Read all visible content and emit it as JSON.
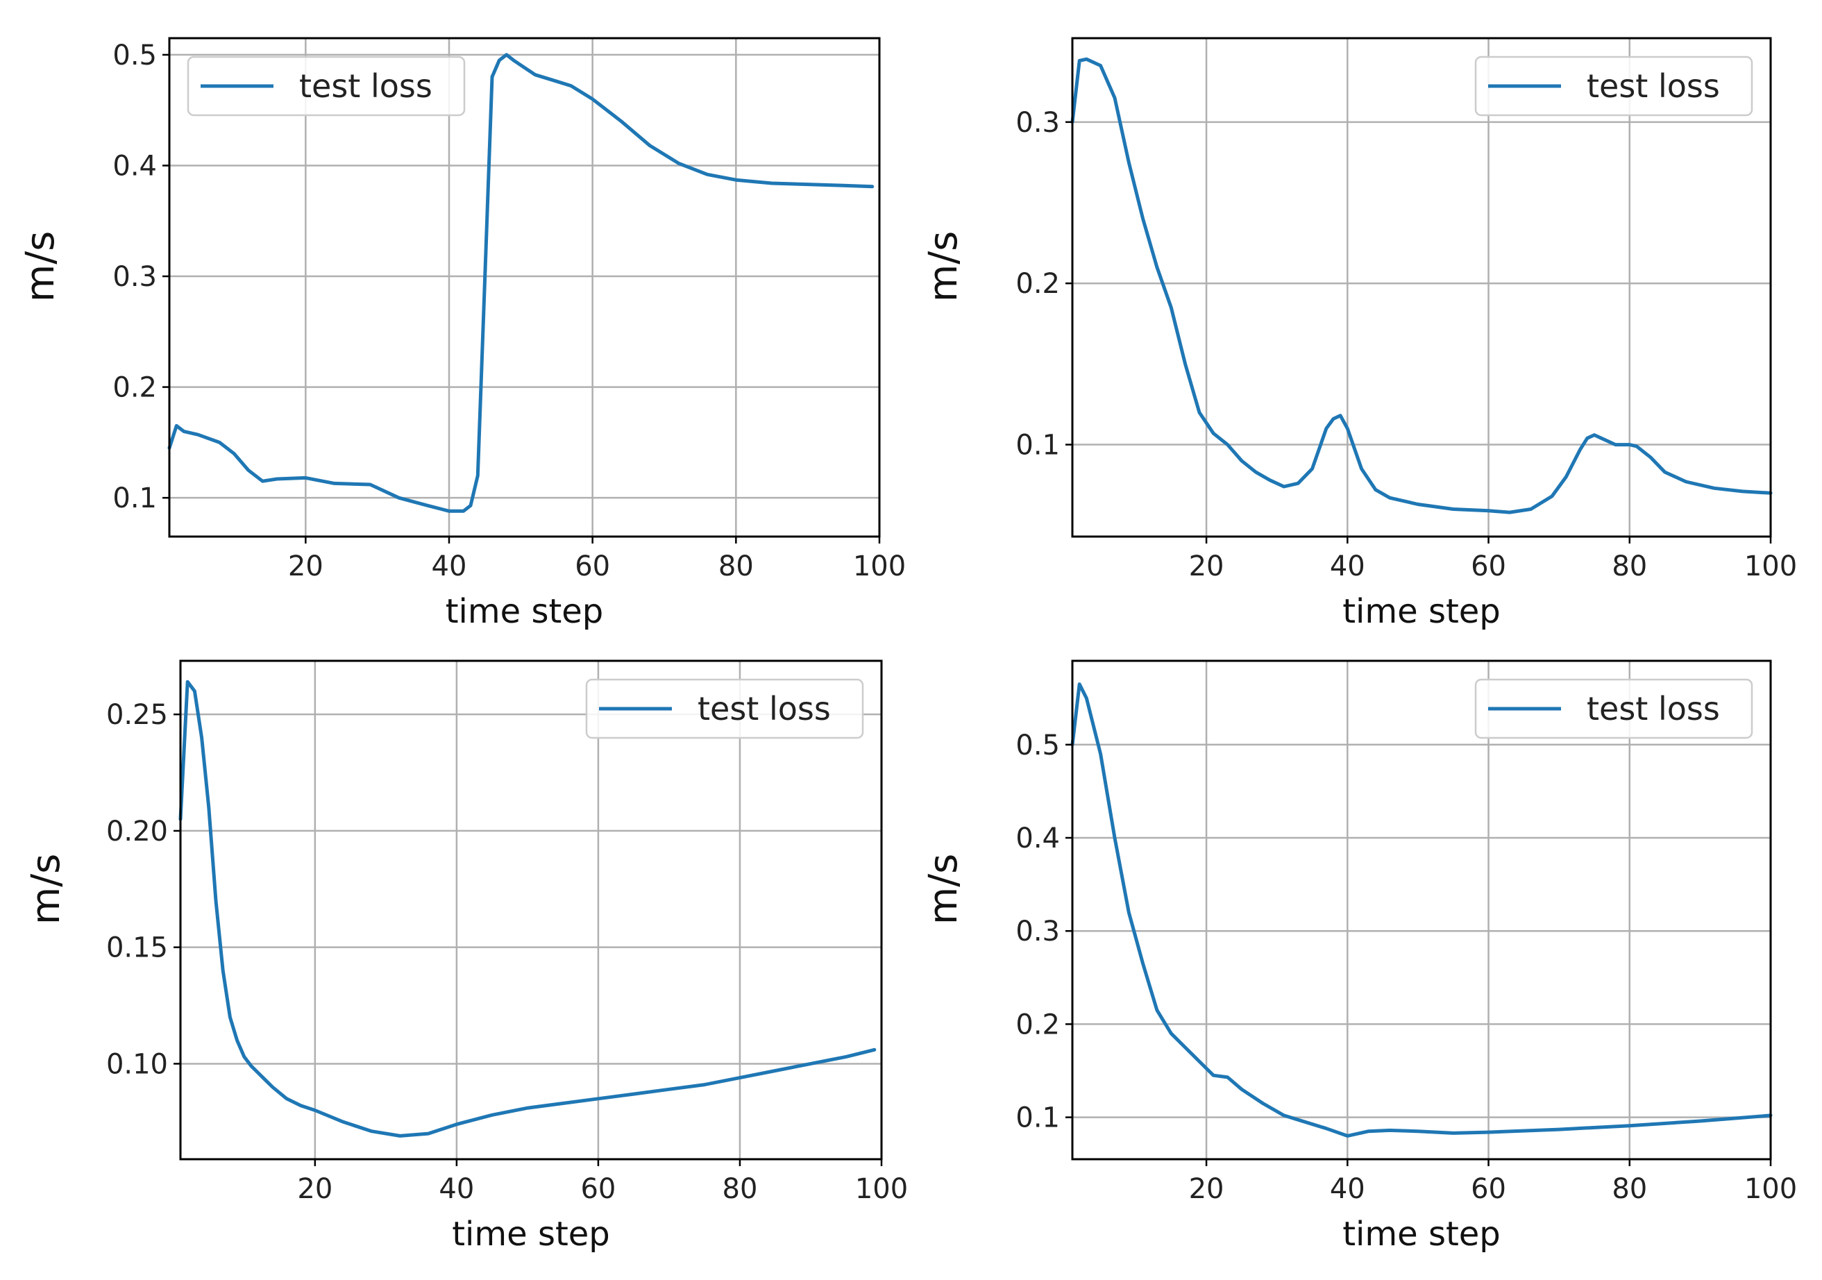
{
  "colors": {
    "series": "#1f77b4",
    "grid": "#b0b0b0",
    "frame": "#000000"
  },
  "chart_data": [
    {
      "type": "line",
      "position": "top-left",
      "xlabel": "time step",
      "ylabel": "m/s",
      "xlim": [
        1,
        100
      ],
      "ylim": [
        0.065,
        0.515
      ],
      "xticks": [
        20,
        40,
        60,
        80,
        100
      ],
      "xtick_labels": [
        "20",
        "40",
        "60",
        "80",
        "100"
      ],
      "yticks": [
        0.1,
        0.2,
        0.3,
        0.4,
        0.5
      ],
      "ytick_labels": [
        "0.1",
        "0.2",
        "0.3",
        "0.4",
        "0.5"
      ],
      "grid": true,
      "legend_position": "top-left",
      "series": [
        {
          "name": "test loss",
          "x": [
            1,
            2,
            3,
            5,
            8,
            10,
            12,
            14,
            16,
            20,
            24,
            29,
            33,
            37,
            40,
            42,
            43,
            44,
            45,
            46,
            47,
            48,
            49,
            52,
            55,
            57,
            60,
            64,
            68,
            72,
            76,
            80,
            85,
            90,
            95,
            99
          ],
          "y": [
            0.145,
            0.165,
            0.16,
            0.157,
            0.15,
            0.14,
            0.125,
            0.115,
            0.117,
            0.118,
            0.113,
            0.112,
            0.1,
            0.093,
            0.088,
            0.088,
            0.093,
            0.12,
            0.3,
            0.48,
            0.495,
            0.5,
            0.495,
            0.482,
            0.476,
            0.472,
            0.46,
            0.44,
            0.418,
            0.402,
            0.392,
            0.387,
            0.384,
            0.383,
            0.382,
            0.381
          ]
        }
      ]
    },
    {
      "type": "line",
      "position": "top-right",
      "xlabel": "time step",
      "ylabel": "m/s",
      "xlim": [
        1,
        100
      ],
      "ylim": [
        0.043,
        0.352
      ],
      "xticks": [
        20,
        40,
        60,
        80,
        100
      ],
      "xtick_labels": [
        "20",
        "40",
        "60",
        "80",
        "100"
      ],
      "yticks": [
        0.1,
        0.2,
        0.3
      ],
      "ytick_labels": [
        "0.1",
        "0.2",
        "0.3"
      ],
      "grid": true,
      "legend_position": "top-right",
      "series": [
        {
          "name": "test loss",
          "x": [
            1,
            2,
            3,
            5,
            7,
            9,
            11,
            13,
            15,
            17,
            19,
            21,
            23,
            25,
            27,
            29,
            31,
            33,
            35,
            37,
            38,
            39,
            40,
            42,
            44,
            46,
            50,
            55,
            60,
            63,
            66,
            69,
            71,
            73,
            74,
            75,
            76,
            78,
            80,
            81,
            83,
            85,
            88,
            92,
            96,
            100
          ],
          "y": [
            0.3,
            0.338,
            0.339,
            0.335,
            0.315,
            0.275,
            0.24,
            0.21,
            0.185,
            0.15,
            0.12,
            0.107,
            0.1,
            0.09,
            0.083,
            0.078,
            0.074,
            0.076,
            0.085,
            0.11,
            0.116,
            0.118,
            0.11,
            0.085,
            0.072,
            0.067,
            0.063,
            0.06,
            0.059,
            0.058,
            0.06,
            0.068,
            0.08,
            0.097,
            0.104,
            0.106,
            0.104,
            0.1,
            0.1,
            0.099,
            0.092,
            0.083,
            0.077,
            0.073,
            0.071,
            0.07
          ]
        }
      ]
    },
    {
      "type": "line",
      "position": "bottom-left",
      "xlabel": "time step",
      "ylabel": "m/s",
      "xlim": [
        1,
        100
      ],
      "ylim": [
        0.059,
        0.273
      ],
      "xticks": [
        20,
        40,
        60,
        80,
        100
      ],
      "xtick_labels": [
        "20",
        "40",
        "60",
        "80",
        "100"
      ],
      "yticks": [
        0.1,
        0.15,
        0.2,
        0.25
      ],
      "ytick_labels": [
        "0.10",
        "0.15",
        "0.20",
        "0.25"
      ],
      "grid": true,
      "legend_position": "top-right",
      "series": [
        {
          "name": "test loss",
          "x": [
            1,
            2,
            3,
            4,
            5,
            6,
            7,
            8,
            9,
            10,
            11,
            12,
            14,
            16,
            18,
            20,
            24,
            28,
            32,
            36,
            40,
            45,
            50,
            55,
            60,
            65,
            70,
            75,
            80,
            85,
            90,
            95,
            99
          ],
          "y": [
            0.205,
            0.264,
            0.26,
            0.24,
            0.21,
            0.17,
            0.14,
            0.12,
            0.11,
            0.103,
            0.099,
            0.096,
            0.09,
            0.085,
            0.082,
            0.08,
            0.075,
            0.071,
            0.069,
            0.07,
            0.074,
            0.078,
            0.081,
            0.083,
            0.085,
            0.087,
            0.089,
            0.091,
            0.094,
            0.097,
            0.1,
            0.103,
            0.106
          ]
        }
      ]
    },
    {
      "type": "line",
      "position": "bottom-right",
      "xlabel": "time step",
      "ylabel": "m/s",
      "xlim": [
        1,
        100
      ],
      "ylim": [
        0.055,
        0.59
      ],
      "xticks": [
        20,
        40,
        60,
        80,
        100
      ],
      "xtick_labels": [
        "20",
        "40",
        "60",
        "80",
        "100"
      ],
      "yticks": [
        0.1,
        0.2,
        0.3,
        0.4,
        0.5
      ],
      "ytick_labels": [
        "0.1",
        "0.2",
        "0.3",
        "0.4",
        "0.5"
      ],
      "grid": true,
      "legend_position": "top-right",
      "series": [
        {
          "name": "test loss",
          "x": [
            1,
            2,
            3,
            5,
            7,
            9,
            11,
            13,
            15,
            17,
            19,
            21,
            23,
            25,
            28,
            31,
            34,
            37,
            40,
            43,
            46,
            50,
            55,
            60,
            70,
            80,
            90,
            100
          ],
          "y": [
            0.5,
            0.565,
            0.55,
            0.49,
            0.4,
            0.32,
            0.265,
            0.215,
            0.19,
            0.175,
            0.16,
            0.145,
            0.143,
            0.13,
            0.115,
            0.102,
            0.095,
            0.088,
            0.08,
            0.085,
            0.086,
            0.085,
            0.083,
            0.084,
            0.087,
            0.091,
            0.096,
            0.102
          ]
        }
      ]
    }
  ]
}
